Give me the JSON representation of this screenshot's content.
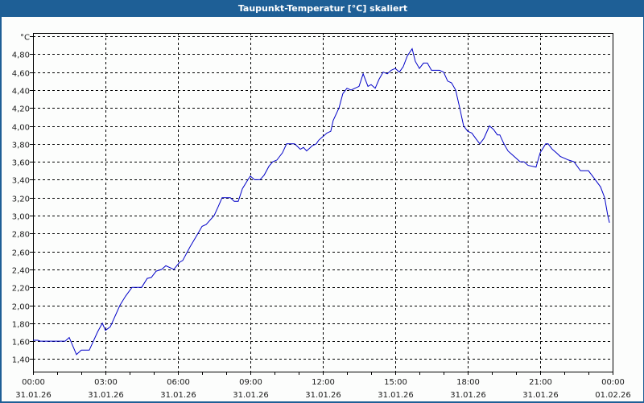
{
  "window": {
    "title": "Taupunkt-Temperatur [°C] skaliert"
  },
  "colors": {
    "title_bar": "#1e5f96",
    "title_text": "#ffffff",
    "background": "#fcfdfc",
    "line": "#0000c8",
    "grid": "#000000",
    "axis": "#000000"
  },
  "chart_data": {
    "type": "line",
    "title": "Taupunkt-Temperatur [°C] skaliert",
    "xlabel": "",
    "ylabel": "°C",
    "ylim": [
      1.3,
      5.0
    ],
    "xlim_hours": [
      0,
      24
    ],
    "grid": true,
    "grid_style": "dashed",
    "legend": null,
    "y_ticks": [
      "°C",
      "4,80",
      "4,60",
      "4,40",
      "4,20",
      "4,00",
      "3,80",
      "3,60",
      "3,40",
      "3,20",
      "3,00",
      "2,80",
      "2,60",
      "2,40",
      "2,20",
      "2,00",
      "1,80",
      "1,60",
      "1,40"
    ],
    "y_tick_values": [
      5.0,
      4.8,
      4.6,
      4.4,
      4.2,
      4.0,
      3.8,
      3.6,
      3.4,
      3.2,
      3.0,
      2.8,
      2.6,
      2.4,
      2.2,
      2.0,
      1.8,
      1.6,
      1.4
    ],
    "x_ticks": [
      {
        "time": "00:00",
        "date": "31.01.26"
      },
      {
        "time": "03:00",
        "date": "31.01.26"
      },
      {
        "time": "06:00",
        "date": "31.01.26"
      },
      {
        "time": "09:00",
        "date": "31.01.26"
      },
      {
        "time": "12:00",
        "date": "31.01.26"
      },
      {
        "time": "15:00",
        "date": "31.01.26"
      },
      {
        "time": "18:00",
        "date": "31.01.26"
      },
      {
        "time": "21:00",
        "date": "31.01.26"
      },
      {
        "time": "00:00",
        "date": "01.02.26"
      }
    ],
    "series": [
      {
        "name": "Taupunkt-Temperatur",
        "unit": "°C",
        "points_hours_value": [
          [
            0.0,
            1.61
          ],
          [
            0.2,
            1.61
          ],
          [
            0.3,
            1.6
          ],
          [
            1.0,
            1.6
          ],
          [
            1.33,
            1.6
          ],
          [
            1.5,
            1.64
          ],
          [
            1.8,
            1.45
          ],
          [
            2.0,
            1.5
          ],
          [
            2.2,
            1.5
          ],
          [
            2.33,
            1.5
          ],
          [
            2.67,
            1.7
          ],
          [
            2.87,
            1.8
          ],
          [
            3.0,
            1.72
          ],
          [
            3.2,
            1.76
          ],
          [
            3.6,
            2.0
          ],
          [
            3.83,
            2.1
          ],
          [
            4.1,
            2.2
          ],
          [
            4.33,
            2.2
          ],
          [
            4.5,
            2.2
          ],
          [
            4.73,
            2.3
          ],
          [
            4.9,
            2.31
          ],
          [
            5.1,
            2.38
          ],
          [
            5.33,
            2.4
          ],
          [
            5.5,
            2.44
          ],
          [
            5.83,
            2.4
          ],
          [
            6.07,
            2.48
          ],
          [
            6.2,
            2.5
          ],
          [
            6.5,
            2.65
          ],
          [
            6.83,
            2.8
          ],
          [
            7.0,
            2.88
          ],
          [
            7.17,
            2.9
          ],
          [
            7.5,
            3.0
          ],
          [
            7.67,
            3.1
          ],
          [
            7.83,
            3.2
          ],
          [
            8.17,
            3.2
          ],
          [
            8.33,
            3.16
          ],
          [
            8.5,
            3.16
          ],
          [
            8.67,
            3.3
          ],
          [
            8.9,
            3.4
          ],
          [
            9.0,
            3.44
          ],
          [
            9.17,
            3.4
          ],
          [
            9.4,
            3.4
          ],
          [
            9.57,
            3.45
          ],
          [
            9.77,
            3.55
          ],
          [
            9.93,
            3.6
          ],
          [
            10.1,
            3.62
          ],
          [
            10.33,
            3.7
          ],
          [
            10.5,
            3.8
          ],
          [
            10.83,
            3.8
          ],
          [
            11.07,
            3.74
          ],
          [
            11.2,
            3.76
          ],
          [
            11.33,
            3.72
          ],
          [
            11.57,
            3.78
          ],
          [
            11.73,
            3.8
          ],
          [
            11.83,
            3.84
          ],
          [
            12.0,
            3.88
          ],
          [
            12.17,
            3.92
          ],
          [
            12.33,
            3.94
          ],
          [
            12.43,
            4.06
          ],
          [
            12.67,
            4.2
          ],
          [
            12.83,
            4.36
          ],
          [
            13.0,
            4.42
          ],
          [
            13.17,
            4.4
          ],
          [
            13.33,
            4.42
          ],
          [
            13.5,
            4.44
          ],
          [
            13.67,
            4.58
          ],
          [
            13.87,
            4.44
          ],
          [
            14.0,
            4.46
          ],
          [
            14.17,
            4.42
          ],
          [
            14.33,
            4.52
          ],
          [
            14.5,
            4.6
          ],
          [
            14.67,
            4.58
          ],
          [
            14.83,
            4.62
          ],
          [
            15.0,
            4.64
          ],
          [
            15.17,
            4.6
          ],
          [
            15.33,
            4.66
          ],
          [
            15.5,
            4.78
          ],
          [
            15.7,
            4.86
          ],
          [
            15.83,
            4.72
          ],
          [
            16.0,
            4.64
          ],
          [
            16.17,
            4.7
          ],
          [
            16.33,
            4.7
          ],
          [
            16.5,
            4.62
          ],
          [
            16.83,
            4.62
          ],
          [
            17.0,
            4.6
          ],
          [
            17.17,
            4.5
          ],
          [
            17.33,
            4.48
          ],
          [
            17.5,
            4.4
          ],
          [
            17.67,
            4.2
          ],
          [
            17.83,
            4.0
          ],
          [
            18.0,
            3.94
          ],
          [
            18.17,
            3.92
          ],
          [
            18.33,
            3.86
          ],
          [
            18.5,
            3.8
          ],
          [
            18.67,
            3.86
          ],
          [
            18.9,
            4.0
          ],
          [
            19.07,
            3.96
          ],
          [
            19.23,
            3.9
          ],
          [
            19.33,
            3.9
          ],
          [
            19.5,
            3.8
          ],
          [
            19.67,
            3.72
          ],
          [
            20.17,
            3.6
          ],
          [
            20.33,
            3.6
          ],
          [
            20.5,
            3.56
          ],
          [
            20.83,
            3.54
          ],
          [
            21.0,
            3.7
          ],
          [
            21.23,
            3.8
          ],
          [
            21.33,
            3.8
          ],
          [
            21.5,
            3.74
          ],
          [
            21.67,
            3.7
          ],
          [
            21.83,
            3.66
          ],
          [
            22.17,
            3.62
          ],
          [
            22.4,
            3.6
          ],
          [
            22.67,
            3.5
          ],
          [
            23.0,
            3.5
          ],
          [
            23.17,
            3.44
          ],
          [
            23.5,
            3.32
          ],
          [
            23.67,
            3.2
          ],
          [
            23.8,
            3.0
          ],
          [
            23.87,
            2.92
          ]
        ]
      }
    ]
  }
}
